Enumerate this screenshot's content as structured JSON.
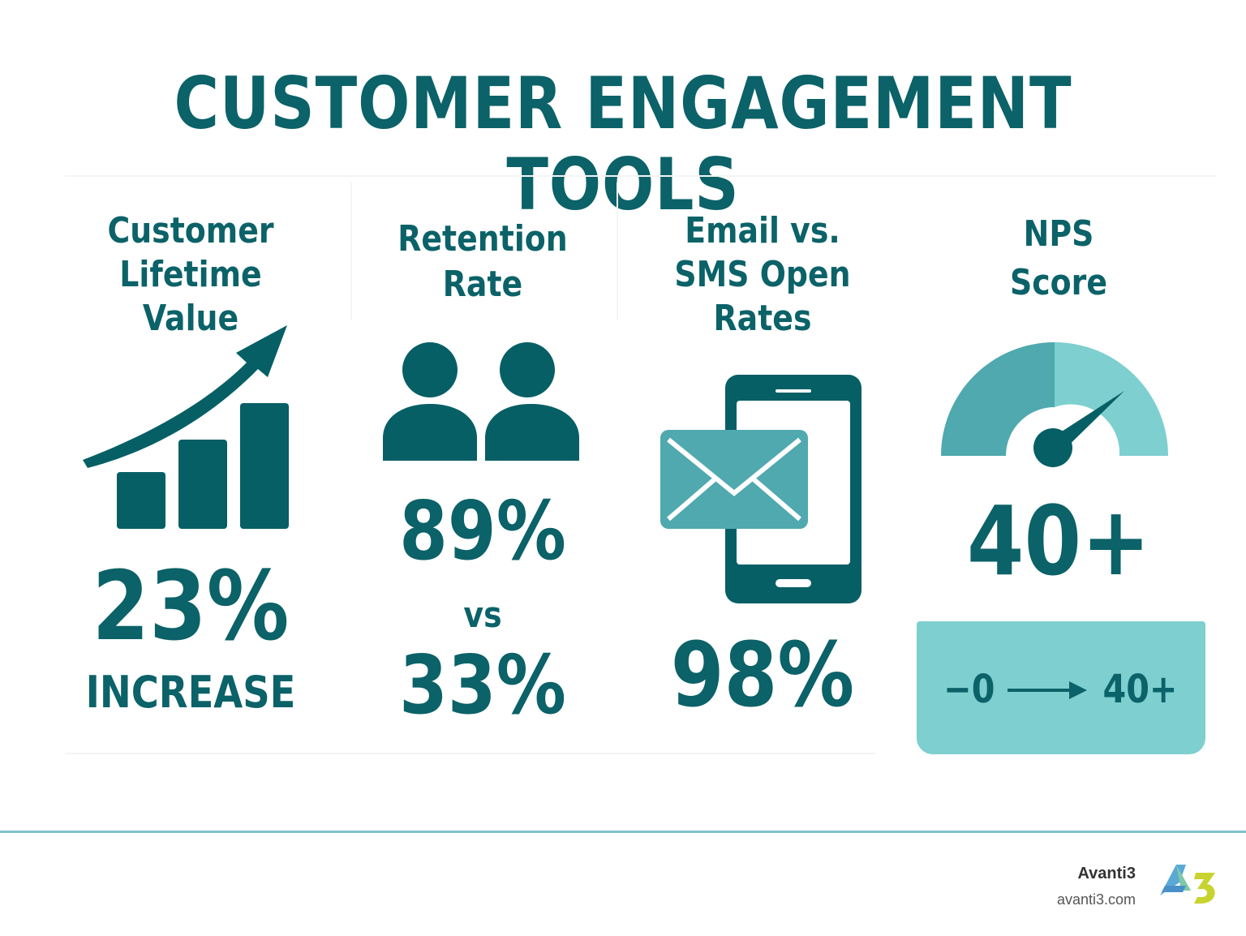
{
  "title": "CUSTOMER ENGAGEMENT TOOLS",
  "colors": {
    "primary": "#0b6268",
    "teal_medium": "#4fa9ae",
    "teal_light": "#7ecfcf",
    "footer_line": "#7fc1cf"
  },
  "metrics": [
    {
      "heading_line1": "Customer",
      "heading_line2": "Lifetime Value",
      "icon": "growth-bar-chart-icon",
      "value": "23%",
      "caption": "INCREASE"
    },
    {
      "heading_line1": "Retention",
      "heading_line2": "Rate",
      "icon": "two-people-icon",
      "value_a": "89%",
      "versus": "vs",
      "value_b": "33%"
    },
    {
      "heading_line1": "Email vs.",
      "heading_line2": "SMS Open",
      "heading_line3": "Rates",
      "icon": "phone-with-envelope-icon",
      "value": "98%"
    },
    {
      "heading_line1": "NPS",
      "heading_line2": "Score",
      "icon": "gauge-icon",
      "value": "40+",
      "range_from": "−0",
      "range_to": "40+"
    }
  ],
  "footer": {
    "brand": "Avanti3",
    "url": "avanti3.com",
    "logo_mark": "A3"
  }
}
